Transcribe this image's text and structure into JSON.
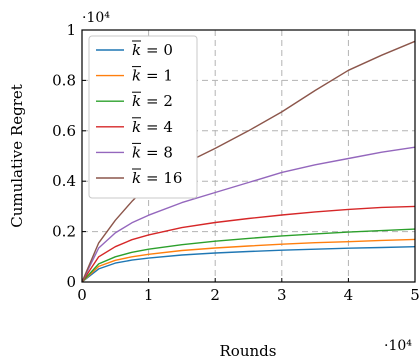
{
  "chart_data": {
    "type": "line",
    "xlabel": "Rounds",
    "ylabel": "Cumulative Regret",
    "x_exponent_label": "·10⁴",
    "y_exponent_label": "·10⁴",
    "xlim": [
      0,
      50000
    ],
    "ylim": [
      0,
      10000
    ],
    "x_ticks": [
      0,
      10000,
      20000,
      30000,
      40000,
      50000
    ],
    "x_tick_labels": [
      "0",
      "1",
      "2",
      "3",
      "4",
      "5"
    ],
    "y_ticks": [
      0,
      2000,
      4000,
      6000,
      8000,
      10000
    ],
    "y_tick_labels": [
      "0",
      "0.2",
      "0.4",
      "0.6",
      "0.8",
      "1"
    ],
    "grid": true,
    "legend_position": "top-left",
    "legend_symbol": "k",
    "x": [
      0,
      2500,
      5000,
      7500,
      10000,
      15000,
      20000,
      25000,
      30000,
      35000,
      40000,
      45000,
      50000
    ],
    "series": [
      {
        "name": "0",
        "color": "#1f77b4",
        "values": [
          0,
          520,
          750,
          870,
          950,
          1070,
          1150,
          1210,
          1260,
          1300,
          1340,
          1370,
          1400
        ]
      },
      {
        "name": "1",
        "color": "#ff7f0e",
        "values": [
          0,
          620,
          860,
          1000,
          1100,
          1250,
          1350,
          1430,
          1500,
          1560,
          1600,
          1650,
          1690
        ]
      },
      {
        "name": "2",
        "color": "#2ca02c",
        "values": [
          0,
          720,
          1000,
          1180,
          1300,
          1480,
          1620,
          1730,
          1830,
          1910,
          1980,
          2040,
          2100
        ]
      },
      {
        "name": "4",
        "color": "#d62728",
        "values": [
          0,
          1000,
          1400,
          1680,
          1870,
          2160,
          2360,
          2520,
          2660,
          2780,
          2880,
          2960,
          3000
        ]
      },
      {
        "name": "8",
        "color": "#9467bd",
        "values": [
          0,
          1350,
          1950,
          2350,
          2650,
          3150,
          3550,
          3950,
          4350,
          4650,
          4900,
          5150,
          5350
        ]
      },
      {
        "name": "16",
        "color": "#8c564b",
        "values": [
          0,
          1550,
          2450,
          3200,
          3850,
          4650,
          5300,
          6000,
          6750,
          7600,
          8400,
          9000,
          9550
        ]
      }
    ]
  }
}
